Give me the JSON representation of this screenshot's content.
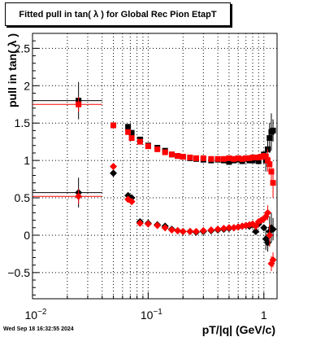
{
  "date_stamp": "Wed Sep 18 16:32:55 2024",
  "chart_data": {
    "type": "scatter",
    "title": "Fitted pull in tan( λ ) for Global Rec Pion EtapT",
    "xlabel": "pT/|q| (GeV/c)",
    "ylabel": "pull in tan( λ )",
    "x_scale": "log",
    "xlim": [
      0.01,
      1.3
    ],
    "ylim": [
      -0.85,
      2.7
    ],
    "grid": true,
    "y_ticks": [
      -0.5,
      0,
      0.5,
      1,
      1.5,
      2,
      2.5
    ],
    "x_major_ticks": [
      0.01,
      0.1,
      1
    ],
    "x_major_labels": [
      "10^-2",
      "10^-1",
      "1"
    ],
    "colors": {
      "black_series": "#000000",
      "red_series": "#ff0000",
      "grid": "#000000"
    },
    "series": [
      {
        "marker": "square",
        "color": "#000000",
        "points": [
          {
            "x": 0.025,
            "y": 1.8,
            "xerr": [
              0.01,
              0.04
            ],
            "yerr": 0.25
          },
          {
            "x": 0.05,
            "y": 1.47
          },
          {
            "x": 0.067,
            "y": 1.45
          },
          {
            "x": 0.072,
            "y": 1.37
          },
          {
            "x": 0.085,
            "y": 1.28
          },
          {
            "x": 0.1,
            "y": 1.2
          },
          {
            "x": 0.12,
            "y": 1.17
          },
          {
            "x": 0.14,
            "y": 1.13
          },
          {
            "x": 0.16,
            "y": 1.08
          },
          {
            "x": 0.18,
            "y": 1.06
          },
          {
            "x": 0.2,
            "y": 1.05
          },
          {
            "x": 0.23,
            "y": 1.03
          },
          {
            "x": 0.26,
            "y": 1.02
          },
          {
            "x": 0.3,
            "y": 1.01
          },
          {
            "x": 0.35,
            "y": 1.0
          },
          {
            "x": 0.4,
            "y": 1.01
          },
          {
            "x": 0.45,
            "y": 1.0
          },
          {
            "x": 0.5,
            "y": 0.98
          },
          {
            "x": 0.55,
            "y": 1.0
          },
          {
            "x": 0.6,
            "y": 1.01
          },
          {
            "x": 0.65,
            "y": 0.99
          },
          {
            "x": 0.7,
            "y": 1.02
          },
          {
            "x": 0.75,
            "y": 1.0
          },
          {
            "x": 0.8,
            "y": 1.0
          },
          {
            "x": 0.85,
            "y": 1.03
          },
          {
            "x": 0.9,
            "y": 0.99
          },
          {
            "x": 0.95,
            "y": 1.05
          },
          {
            "x": 1.0,
            "y": 1.08
          },
          {
            "x": 1.04,
            "y": 1.0,
            "yerr": 0.15
          },
          {
            "x": 1.08,
            "y": 1.15,
            "yerr": 0.12
          },
          {
            "x": 1.12,
            "y": 1.3,
            "yerr": 0.2
          },
          {
            "x": 1.16,
            "y": 1.38,
            "yerr": 0.25
          },
          {
            "x": 1.2,
            "y": 1.4,
            "yerr": 0.15
          }
        ]
      },
      {
        "marker": "square",
        "color": "#ff0000",
        "points": [
          {
            "x": 0.025,
            "y": 1.75,
            "xerr": [
              0.01,
              0.04
            ],
            "yerr": 0.1
          },
          {
            "x": 0.05,
            "y": 1.47
          },
          {
            "x": 0.067,
            "y": 1.38
          },
          {
            "x": 0.072,
            "y": 1.3
          },
          {
            "x": 0.085,
            "y": 1.25
          },
          {
            "x": 0.1,
            "y": 1.19
          },
          {
            "x": 0.12,
            "y": 1.15
          },
          {
            "x": 0.14,
            "y": 1.11
          },
          {
            "x": 0.16,
            "y": 1.08
          },
          {
            "x": 0.18,
            "y": 1.06
          },
          {
            "x": 0.2,
            "y": 1.05
          },
          {
            "x": 0.23,
            "y": 1.04
          },
          {
            "x": 0.26,
            "y": 1.03
          },
          {
            "x": 0.3,
            "y": 1.03
          },
          {
            "x": 0.35,
            "y": 1.02
          },
          {
            "x": 0.4,
            "y": 1.02
          },
          {
            "x": 0.45,
            "y": 1.02
          },
          {
            "x": 0.5,
            "y": 1.03
          },
          {
            "x": 0.55,
            "y": 1.02
          },
          {
            "x": 0.6,
            "y": 1.03
          },
          {
            "x": 0.65,
            "y": 1.02
          },
          {
            "x": 0.7,
            "y": 1.03
          },
          {
            "x": 0.75,
            "y": 1.03
          },
          {
            "x": 0.8,
            "y": 1.04
          },
          {
            "x": 0.85,
            "y": 1.04
          },
          {
            "x": 0.9,
            "y": 1.04
          },
          {
            "x": 0.95,
            "y": 1.05
          },
          {
            "x": 1.0,
            "y": 1.06
          },
          {
            "x": 1.04,
            "y": 1.05
          },
          {
            "x": 1.08,
            "y": 1.0,
            "yerr": 0.15
          },
          {
            "x": 1.12,
            "y": 0.95,
            "yerr": 0.1
          },
          {
            "x": 1.16,
            "y": 0.85,
            "yerr": 0.12
          },
          {
            "x": 1.2,
            "y": 0.7,
            "yerr": 0.2
          }
        ]
      },
      {
        "marker": "diamond",
        "color": "#000000",
        "points": [
          {
            "x": 0.025,
            "y": 0.57,
            "xerr": [
              0.01,
              0.04
            ],
            "yerr": 0.2
          },
          {
            "x": 0.05,
            "y": 0.83
          },
          {
            "x": 0.067,
            "y": 0.53
          },
          {
            "x": 0.072,
            "y": 0.5
          },
          {
            "x": 0.085,
            "y": 0.18
          },
          {
            "x": 0.1,
            "y": 0.16
          },
          {
            "x": 0.12,
            "y": 0.14
          },
          {
            "x": 0.14,
            "y": 0.12
          },
          {
            "x": 0.16,
            "y": 0.08
          },
          {
            "x": 0.18,
            "y": 0.06
          },
          {
            "x": 0.2,
            "y": 0.05
          },
          {
            "x": 0.23,
            "y": 0.05
          },
          {
            "x": 0.26,
            "y": 0.04
          },
          {
            "x": 0.3,
            "y": 0.05
          },
          {
            "x": 0.35,
            "y": 0.06
          },
          {
            "x": 0.4,
            "y": 0.07
          },
          {
            "x": 0.45,
            "y": 0.08
          },
          {
            "x": 0.5,
            "y": 0.09
          },
          {
            "x": 0.55,
            "y": 0.1
          },
          {
            "x": 0.6,
            "y": 0.11
          },
          {
            "x": 0.65,
            "y": 0.12
          },
          {
            "x": 0.7,
            "y": 0.13
          },
          {
            "x": 0.75,
            "y": 0.12
          },
          {
            "x": 0.8,
            "y": 0.14
          },
          {
            "x": 0.85,
            "y": 0.05
          },
          {
            "x": 0.9,
            "y": 0.15
          },
          {
            "x": 0.95,
            "y": 0.2
          },
          {
            "x": 1.0,
            "y": 0.1
          },
          {
            "x": 1.04,
            "y": -0.05,
            "yerr": 0.15
          },
          {
            "x": 1.08,
            "y": -0.1,
            "yerr": 0.12
          },
          {
            "x": 1.12,
            "y": 0.05,
            "yerr": 0.2
          },
          {
            "x": 1.16,
            "y": 0.1,
            "yerr": 0.2
          },
          {
            "x": 1.2,
            "y": 0.08,
            "yerr": 0.15
          }
        ]
      },
      {
        "marker": "diamond",
        "color": "#ff0000",
        "points": [
          {
            "x": 0.025,
            "y": 0.52,
            "xerr": [
              0.01,
              0.04
            ],
            "yerr": 0.1
          },
          {
            "x": 0.05,
            "y": 0.92
          },
          {
            "x": 0.067,
            "y": 0.48
          },
          {
            "x": 0.072,
            "y": 0.45
          },
          {
            "x": 0.085,
            "y": 0.16
          },
          {
            "x": 0.1,
            "y": 0.15
          },
          {
            "x": 0.12,
            "y": 0.13
          },
          {
            "x": 0.14,
            "y": 0.1
          },
          {
            "x": 0.16,
            "y": 0.07
          },
          {
            "x": 0.18,
            "y": 0.06
          },
          {
            "x": 0.2,
            "y": 0.05
          },
          {
            "x": 0.23,
            "y": 0.05
          },
          {
            "x": 0.26,
            "y": 0.05
          },
          {
            "x": 0.3,
            "y": 0.06
          },
          {
            "x": 0.35,
            "y": 0.07
          },
          {
            "x": 0.4,
            "y": 0.08
          },
          {
            "x": 0.45,
            "y": 0.09
          },
          {
            "x": 0.5,
            "y": 0.1
          },
          {
            "x": 0.55,
            "y": 0.1
          },
          {
            "x": 0.6,
            "y": 0.11
          },
          {
            "x": 0.65,
            "y": 0.12
          },
          {
            "x": 0.7,
            "y": 0.13
          },
          {
            "x": 0.75,
            "y": 0.14
          },
          {
            "x": 0.8,
            "y": 0.15
          },
          {
            "x": 0.85,
            "y": 0.12
          },
          {
            "x": 0.9,
            "y": 0.18
          },
          {
            "x": 0.95,
            "y": 0.2
          },
          {
            "x": 1.0,
            "y": 0.22
          },
          {
            "x": 1.04,
            "y": 0.25
          },
          {
            "x": 1.08,
            "y": 0.3,
            "yerr": 0.1
          },
          {
            "x": 1.12,
            "y": 0.0,
            "yerr": 0.15
          },
          {
            "x": 1.16,
            "y": -0.38,
            "yerr": 0.1
          },
          {
            "x": 1.2,
            "y": -0.33,
            "yerr": 0.1
          }
        ]
      }
    ]
  }
}
